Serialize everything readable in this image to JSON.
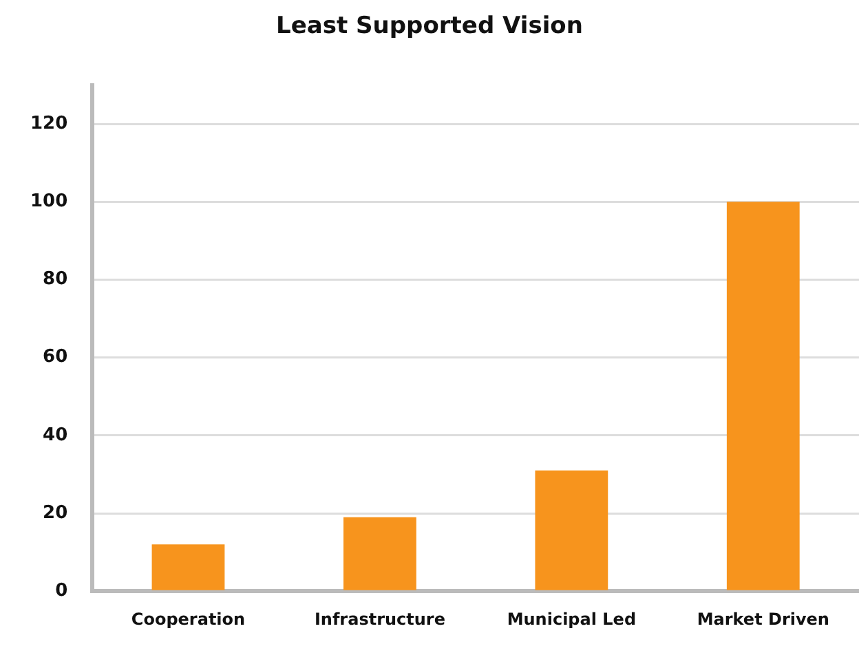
{
  "chart_data": {
    "type": "bar",
    "title": "Least Supported Vision",
    "categories": [
      "Cooperation",
      "Infrastructure",
      "Municipal Led",
      "Market Driven"
    ],
    "values": [
      12,
      19,
      31,
      100
    ],
    "color": "#f7941d",
    "ylim": [
      0,
      130
    ],
    "yticks": [
      0,
      20,
      40,
      60,
      80,
      100,
      120
    ],
    "grid": "y",
    "legend": false
  }
}
